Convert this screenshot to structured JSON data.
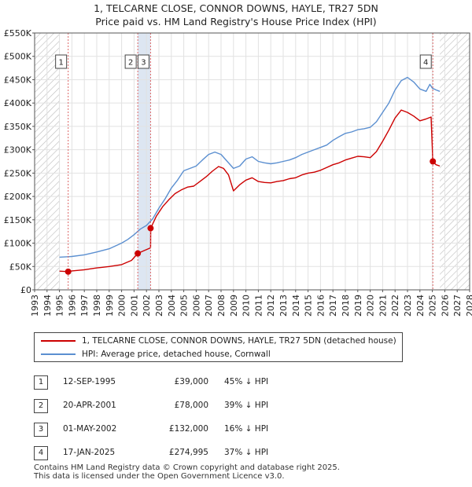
{
  "title": {
    "line1": "1, TELCARNE CLOSE, CONNOR DOWNS, HAYLE, TR27 5DN",
    "line2": "Price paid vs. HM Land Registry's House Price Index (HPI)"
  },
  "colors": {
    "price_paid": "#cc0000",
    "hpi": "#5b8fd0",
    "vline": "#dd6666",
    "shade": "#dde6f2",
    "hatch": "#bbbbbb",
    "grid": "#e2e2e2"
  },
  "chart_data": {
    "type": "line",
    "title": "1, TELCARNE CLOSE, CONNOR DOWNS, HAYLE, TR27 5DN — Price paid vs. HM Land Registry's House Price Index (HPI)",
    "xlabel": "",
    "ylabel": "",
    "xlim": [
      1993,
      2028
    ],
    "ylim": [
      0,
      550000
    ],
    "x_ticks": [
      "1993",
      "1994",
      "1995",
      "1996",
      "1997",
      "1998",
      "1999",
      "2000",
      "2001",
      "2002",
      "2003",
      "2004",
      "2005",
      "2006",
      "2007",
      "2008",
      "2009",
      "2010",
      "2011",
      "2012",
      "2013",
      "2014",
      "2015",
      "2016",
      "2017",
      "2018",
      "2019",
      "2020",
      "2021",
      "2022",
      "2023",
      "2024",
      "2025",
      "2026",
      "2027",
      "2028"
    ],
    "y_ticks": [
      {
        "value": 0,
        "label": "£0"
      },
      {
        "value": 50000,
        "label": "£50K"
      },
      {
        "value": 100000,
        "label": "£100K"
      },
      {
        "value": 150000,
        "label": "£150K"
      },
      {
        "value": 200000,
        "label": "£200K"
      },
      {
        "value": 250000,
        "label": "£250K"
      },
      {
        "value": 300000,
        "label": "£300K"
      },
      {
        "value": 350000,
        "label": "£350K"
      },
      {
        "value": 400000,
        "label": "£400K"
      },
      {
        "value": 450000,
        "label": "£450K"
      },
      {
        "value": 500000,
        "label": "£500K"
      },
      {
        "value": 550000,
        "label": "£550K"
      }
    ],
    "data_start_year": 1995.0,
    "data_end_year": 2025.6,
    "series": [
      {
        "name": "1, TELCARNE CLOSE, CONNOR DOWNS, HAYLE, TR27 5DN (detached house)",
        "color_key": "price_paid",
        "points": [
          [
            1995.0,
            40000
          ],
          [
            1995.7,
            39000
          ],
          [
            1996.0,
            40500
          ],
          [
            1997.0,
            43000
          ],
          [
            1998.0,
            47000
          ],
          [
            1999.0,
            50000
          ],
          [
            2000.0,
            54000
          ],
          [
            2000.8,
            63000
          ],
          [
            2001.3,
            78000
          ],
          [
            2001.8,
            84000
          ],
          [
            2002.33,
            90000
          ],
          [
            2002.34,
            132000
          ],
          [
            2002.8,
            158000
          ],
          [
            2003.3,
            178000
          ],
          [
            2003.8,
            193000
          ],
          [
            2004.3,
            206000
          ],
          [
            2004.8,
            214000
          ],
          [
            2005.3,
            220000
          ],
          [
            2005.8,
            222000
          ],
          [
            2006.3,
            232000
          ],
          [
            2006.8,
            242000
          ],
          [
            2007.3,
            254000
          ],
          [
            2007.8,
            264000
          ],
          [
            2008.2,
            260000
          ],
          [
            2008.6,
            246000
          ],
          [
            2009.0,
            212000
          ],
          [
            2009.5,
            225000
          ],
          [
            2010.0,
            235000
          ],
          [
            2010.5,
            240000
          ],
          [
            2011.0,
            232000
          ],
          [
            2011.5,
            230000
          ],
          [
            2012.0,
            229000
          ],
          [
            2012.5,
            232000
          ],
          [
            2013.0,
            234000
          ],
          [
            2013.5,
            238000
          ],
          [
            2014.0,
            240000
          ],
          [
            2014.5,
            246000
          ],
          [
            2015.0,
            250000
          ],
          [
            2015.5,
            252000
          ],
          [
            2016.0,
            256000
          ],
          [
            2016.5,
            262000
          ],
          [
            2017.0,
            268000
          ],
          [
            2017.5,
            272000
          ],
          [
            2018.0,
            278000
          ],
          [
            2018.5,
            282000
          ],
          [
            2019.0,
            286000
          ],
          [
            2019.5,
            285000
          ],
          [
            2020.0,
            283000
          ],
          [
            2020.5,
            296000
          ],
          [
            2021.0,
            318000
          ],
          [
            2021.5,
            342000
          ],
          [
            2022.0,
            368000
          ],
          [
            2022.5,
            385000
          ],
          [
            2023.0,
            380000
          ],
          [
            2023.5,
            372000
          ],
          [
            2024.0,
            362000
          ],
          [
            2024.5,
            366000
          ],
          [
            2024.9,
            370000
          ],
          [
            2025.04,
            274995
          ],
          [
            2025.3,
            268000
          ],
          [
            2025.6,
            265000
          ]
        ]
      },
      {
        "name": "HPI: Average price, detached house, Cornwall",
        "color_key": "hpi",
        "points": [
          [
            1995.0,
            70000
          ],
          [
            1995.7,
            71000
          ],
          [
            1996.0,
            71500
          ],
          [
            1997.0,
            75000
          ],
          [
            1998.0,
            81000
          ],
          [
            1999.0,
            88000
          ],
          [
            2000.0,
            100000
          ],
          [
            2000.5,
            108000
          ],
          [
            2001.0,
            118000
          ],
          [
            2001.5,
            130000
          ],
          [
            2002.0,
            138000
          ],
          [
            2002.5,
            152000
          ],
          [
            2003.0,
            175000
          ],
          [
            2003.5,
            195000
          ],
          [
            2004.0,
            218000
          ],
          [
            2004.5,
            235000
          ],
          [
            2005.0,
            255000
          ],
          [
            2005.5,
            260000
          ],
          [
            2006.0,
            265000
          ],
          [
            2006.5,
            278000
          ],
          [
            2007.0,
            290000
          ],
          [
            2007.5,
            295000
          ],
          [
            2008.0,
            290000
          ],
          [
            2008.5,
            275000
          ],
          [
            2009.0,
            260000
          ],
          [
            2009.5,
            265000
          ],
          [
            2010.0,
            280000
          ],
          [
            2010.5,
            285000
          ],
          [
            2011.0,
            275000
          ],
          [
            2011.5,
            272000
          ],
          [
            2012.0,
            270000
          ],
          [
            2012.5,
            272000
          ],
          [
            2013.0,
            275000
          ],
          [
            2013.5,
            278000
          ],
          [
            2014.0,
            283000
          ],
          [
            2014.5,
            290000
          ],
          [
            2015.0,
            295000
          ],
          [
            2015.5,
            300000
          ],
          [
            2016.0,
            305000
          ],
          [
            2016.5,
            310000
          ],
          [
            2017.0,
            320000
          ],
          [
            2017.5,
            328000
          ],
          [
            2018.0,
            335000
          ],
          [
            2018.5,
            338000
          ],
          [
            2019.0,
            343000
          ],
          [
            2019.5,
            345000
          ],
          [
            2020.0,
            348000
          ],
          [
            2020.5,
            360000
          ],
          [
            2021.0,
            380000
          ],
          [
            2021.5,
            400000
          ],
          [
            2022.0,
            428000
          ],
          [
            2022.5,
            448000
          ],
          [
            2023.0,
            455000
          ],
          [
            2023.5,
            445000
          ],
          [
            2024.0,
            430000
          ],
          [
            2024.5,
            425000
          ],
          [
            2024.8,
            440000
          ],
          [
            2025.0,
            432000
          ],
          [
            2025.3,
            428000
          ],
          [
            2025.6,
            425000
          ]
        ]
      }
    ],
    "sales": [
      {
        "marker": "1",
        "x": 1995.7,
        "price": 39000
      },
      {
        "marker": "2",
        "x": 2001.3,
        "price": 78000
      },
      {
        "marker": "3",
        "x": 2002.33,
        "price": 132000
      },
      {
        "marker": "4",
        "x": 2025.04,
        "price": 274995
      }
    ],
    "shaded_ranges": [
      [
        2001.3,
        2002.33
      ]
    ]
  },
  "legend": {
    "price_paid": "1, TELCARNE CLOSE, CONNOR DOWNS, HAYLE, TR27 5DN (detached house)",
    "hpi": "HPI: Average price, detached house, Cornwall"
  },
  "transactions": [
    {
      "marker": "1",
      "date": "12-SEP-1995",
      "price": "£39,000",
      "hpi": "45% ↓ HPI"
    },
    {
      "marker": "2",
      "date": "20-APR-2001",
      "price": "£78,000",
      "hpi": "39% ↓ HPI"
    },
    {
      "marker": "3",
      "date": "01-MAY-2002",
      "price": "£132,000",
      "hpi": "16% ↓ HPI"
    },
    {
      "marker": "4",
      "date": "17-JAN-2025",
      "price": "£274,995",
      "hpi": "37% ↓ HPI"
    }
  ],
  "footer": {
    "line1": "Contains HM Land Registry data © Crown copyright and database right 2025.",
    "line2": "This data is licensed under the Open Government Licence v3.0."
  }
}
